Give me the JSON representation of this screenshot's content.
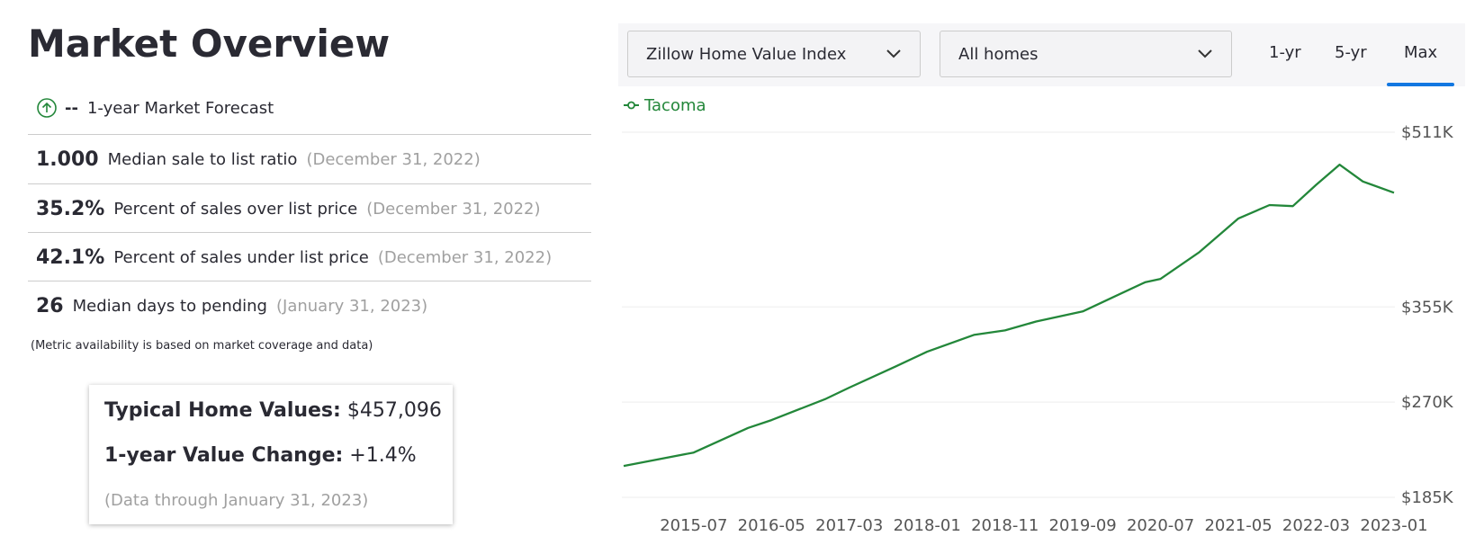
{
  "header": {
    "title": "Market Overview"
  },
  "forecast": {
    "value": "--",
    "label": "1-year Market Forecast"
  },
  "metrics": [
    {
      "value": "1.000",
      "label": "Median sale to list ratio",
      "date": "(December 31, 2022)"
    },
    {
      "value": "35.2%",
      "label": "Percent of sales over list price",
      "date": "(December 31, 2022)"
    },
    {
      "value": "42.1%",
      "label": "Percent of sales under list price",
      "date": "(December 31, 2022)"
    },
    {
      "value": "26",
      "label": "Median days to pending",
      "date": "(January 31, 2023)"
    }
  ],
  "note": "(Metric availability is based on market coverage and data)",
  "summary": {
    "home_value_label": "Typical Home Values:",
    "home_value": "$457,096",
    "change_label": "1-year Value Change:",
    "change": "+1.4%",
    "data_through": "(Data through January 31, 2023)"
  },
  "controls": {
    "dropdowns": [
      "Zillow Home Value Index",
      "All homes"
    ],
    "tabs": [
      "1-yr",
      "5-yr",
      "Max"
    ],
    "selected_tab": 2
  },
  "chart_data": {
    "type": "line",
    "x": [
      "2014-10",
      "2015-07",
      "2016-02",
      "2016-05",
      "2016-12",
      "2017-03",
      "2017-09",
      "2018-01",
      "2018-07",
      "2018-11",
      "2019-03",
      "2019-09",
      "2020-01",
      "2020-05",
      "2020-07",
      "2020-12",
      "2021-05",
      "2021-09",
      "2021-12",
      "2022-03",
      "2022-06",
      "2022-09",
      "2023-01"
    ],
    "series": [
      {
        "name": "Tacoma",
        "color": "#23873a",
        "values": [
          213000,
          225000,
          247000,
          254000,
          273000,
          283000,
          302000,
          315000,
          330000,
          334000,
          342000,
          351000,
          364000,
          377000,
          380000,
          404000,
          434000,
          446000,
          445000,
          464000,
          482000,
          467000,
          457000
        ]
      }
    ],
    "ylim": [
      185000,
      511000
    ],
    "yticks": [
      {
        "value": 185000,
        "label": "$185K"
      },
      {
        "value": 270000,
        "label": "$270K"
      },
      {
        "value": 355000,
        "label": "$355K"
      },
      {
        "value": 511000,
        "label": "$511K"
      }
    ],
    "xticks": [
      "2015-07",
      "2016-05",
      "2017-03",
      "2018-01",
      "2018-11",
      "2019-09",
      "2020-07",
      "2021-05",
      "2022-03",
      "2023-01"
    ],
    "grid": true
  }
}
